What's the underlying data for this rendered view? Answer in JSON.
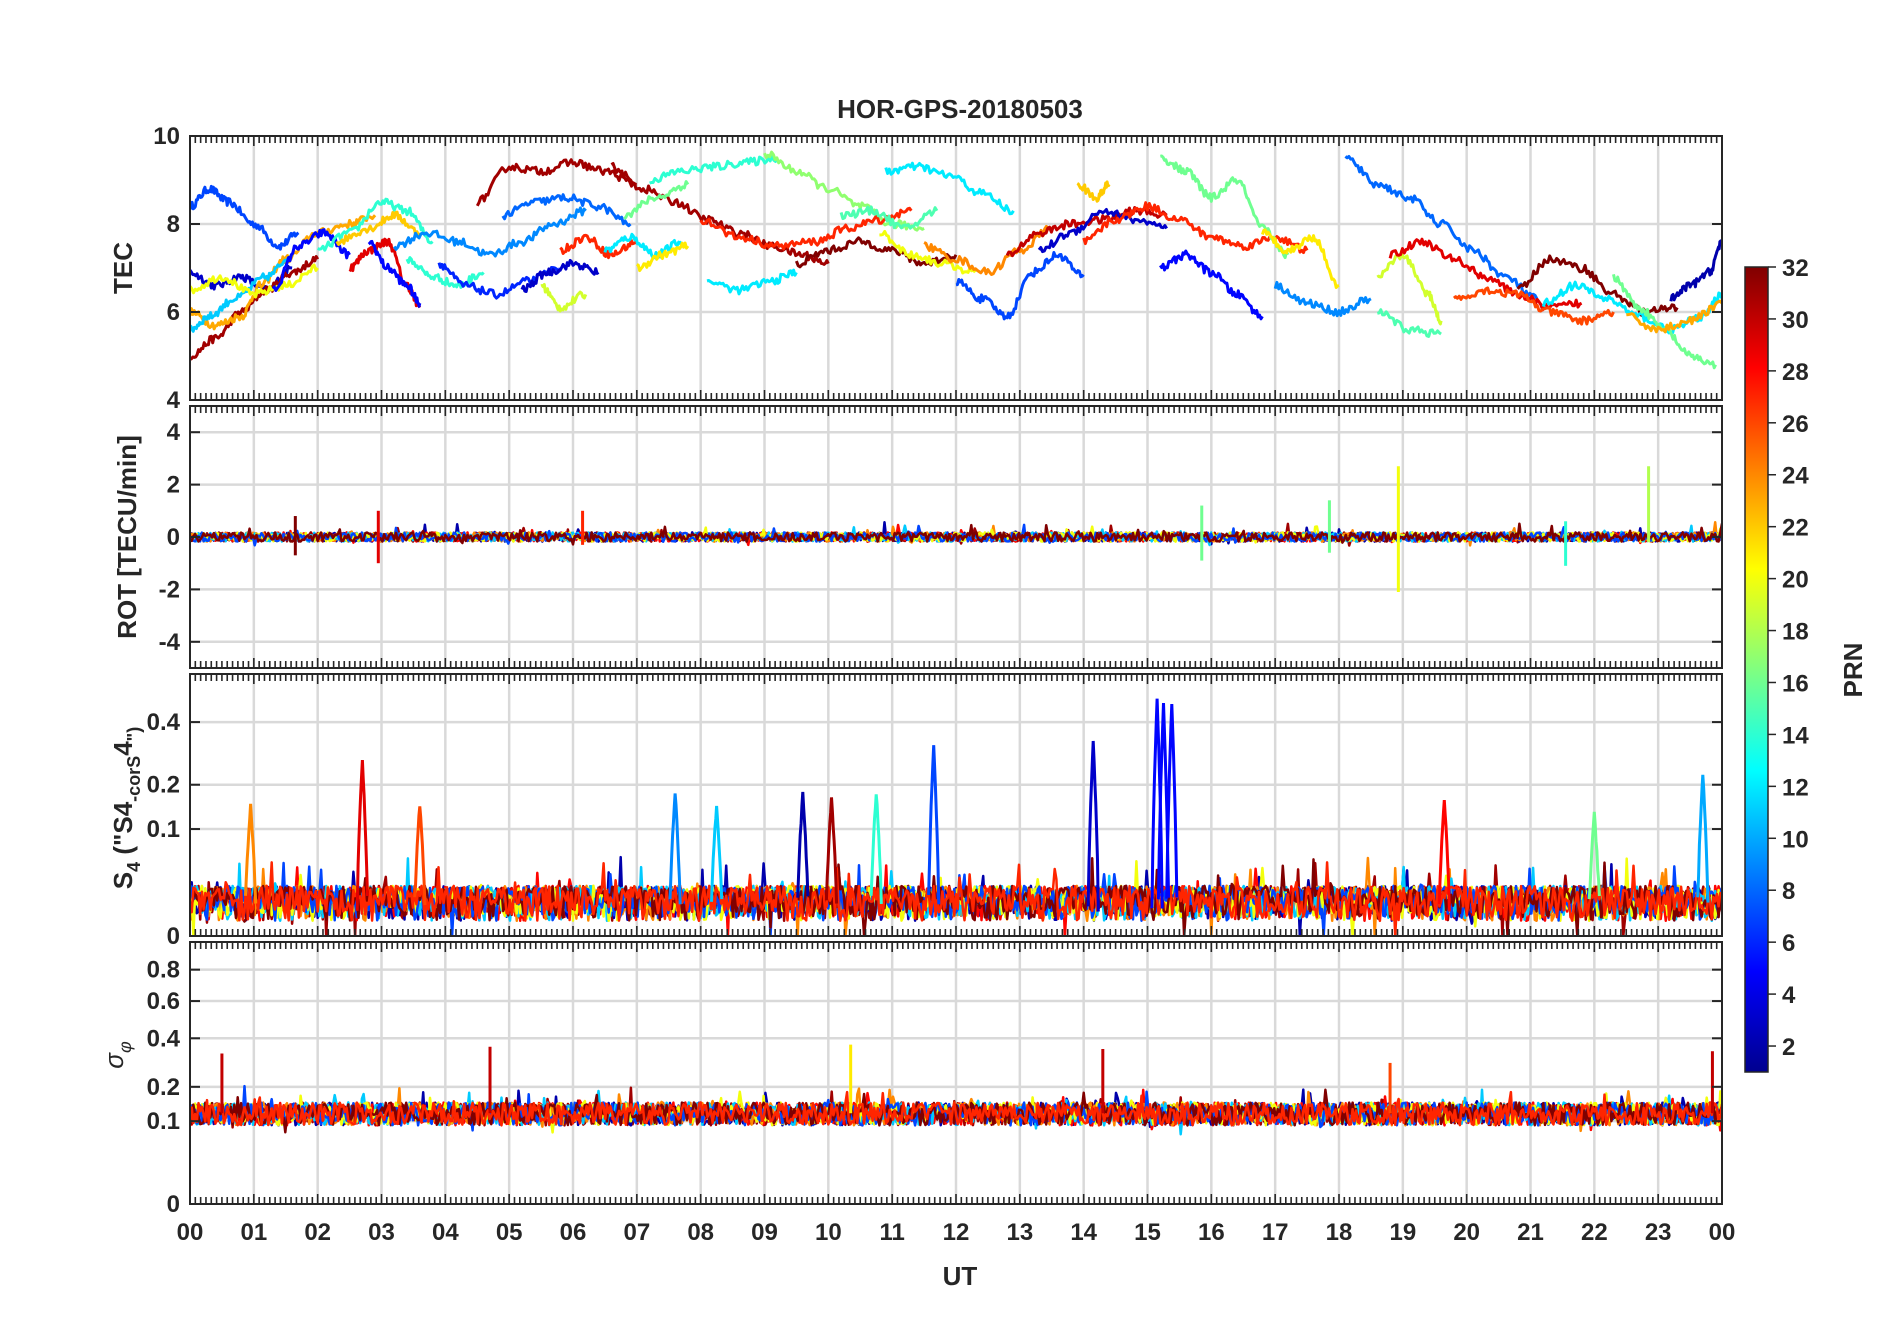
{
  "title": "HOR-GPS-20180503",
  "xlabel": "UT",
  "x_ticks": [
    "00",
    "01",
    "02",
    "03",
    "04",
    "05",
    "06",
    "07",
    "08",
    "09",
    "10",
    "11",
    "12",
    "13",
    "14",
    "15",
    "16",
    "17",
    "18",
    "19",
    "20",
    "21",
    "22",
    "23",
    "00"
  ],
  "colorbar": {
    "label": "PRN",
    "range": [
      1,
      32
    ],
    "ticks": [
      2,
      4,
      6,
      8,
      10,
      12,
      14,
      16,
      18,
      20,
      22,
      24,
      26,
      28,
      30,
      32
    ],
    "colormap": "jet",
    "stops": [
      "#00008f",
      "#0000ff",
      "#0080ff",
      "#00ffff",
      "#80ff80",
      "#ffff00",
      "#ff8000",
      "#ff0000",
      "#800000"
    ]
  },
  "panels": [
    {
      "id": "tec",
      "ylabel": "TEC",
      "ylim": [
        4,
        10
      ],
      "yticks": [
        4,
        6,
        8,
        10
      ],
      "scale": "linear"
    },
    {
      "id": "rot",
      "ylabel": "ROT [TECU/min]",
      "ylim": [
        -5,
        5
      ],
      "yticks": [
        -4,
        -2,
        0,
        2,
        4
      ],
      "scale": "linear"
    },
    {
      "id": "s4",
      "ylabel_parts": [
        "S",
        "4",
        " (\"S",
        "4",
        "-corS",
        "4",
        "\")"
      ],
      "ylim": [
        0,
        0.6
      ],
      "yticks": [
        0,
        0.1,
        0.2,
        0.4
      ],
      "scale": "sqrt"
    },
    {
      "id": "sigma",
      "ylabel_parts": [
        "σ",
        "φ"
      ],
      "ylim": [
        0,
        1
      ],
      "yticks": [
        0,
        0.1,
        0.2,
        0.4,
        0.6,
        0.8
      ],
      "scale": "sqrt"
    }
  ],
  "chart_data": [
    {
      "type": "line",
      "title": "HOR-GPS-20180503",
      "xlabel": "UT",
      "ylabel": "TEC",
      "xlim": [
        0,
        24
      ],
      "ylim": [
        4,
        10
      ],
      "series": [
        {
          "prn": 7,
          "x": [
            0,
            0.3,
            0.6,
            1.0,
            1.4,
            1.7
          ],
          "y": [
            8.4,
            8.8,
            8.5,
            8.0,
            7.5,
            7.8
          ]
        },
        {
          "prn": 3,
          "x": [
            0,
            0.4,
            0.8,
            1.2,
            1.6
          ],
          "y": [
            6.9,
            6.6,
            6.8,
            6.5,
            7.0
          ]
        },
        {
          "prn": 31,
          "x": [
            0,
            0.4,
            0.8,
            1.2,
            1.6,
            2.0
          ],
          "y": [
            5.0,
            5.4,
            6.0,
            6.5,
            6.9,
            7.2
          ]
        },
        {
          "prn": 23,
          "x": [
            0,
            0.4,
            0.8,
            1.1,
            1.5,
            2.0,
            2.5,
            2.9
          ],
          "y": [
            6.0,
            5.7,
            5.9,
            6.6,
            7.2,
            7.8,
            8.0,
            8.2
          ]
        },
        {
          "prn": 11,
          "x": [
            0,
            0.3,
            0.7,
            1.2,
            1.6
          ],
          "y": [
            5.6,
            5.9,
            6.3,
            6.8,
            7.3
          ]
        },
        {
          "prn": 20,
          "x": [
            0,
            0.5,
            1.0,
            1.5,
            2.0
          ],
          "y": [
            6.5,
            6.8,
            6.4,
            6.6,
            7.0
          ]
        },
        {
          "prn": 5,
          "x": [
            1.3,
            1.7,
            2.1,
            2.5
          ],
          "y": [
            6.5,
            7.5,
            7.8,
            7.3
          ]
        },
        {
          "prn": 14,
          "x": [
            2.0,
            2.5,
            3.0,
            3.4,
            3.8
          ],
          "y": [
            7.4,
            7.8,
            8.5,
            8.3,
            7.6
          ]
        },
        {
          "prn": 22,
          "x": [
            2.3,
            2.8,
            3.2,
            3.6
          ],
          "y": [
            7.6,
            7.9,
            8.2,
            7.8
          ]
        },
        {
          "prn": 29,
          "x": [
            2.5,
            2.8,
            3.1,
            3.4,
            3.6
          ],
          "y": [
            7.0,
            7.4,
            7.6,
            6.6,
            6.1
          ]
        },
        {
          "prn": 5,
          "x": [
            2.8,
            3.1,
            3.4,
            3.6
          ],
          "y": [
            7.6,
            7.0,
            6.6,
            6.2
          ]
        },
        {
          "prn": 9,
          "x": [
            3.2,
            3.7,
            4.2,
            4.7,
            5.2,
            5.7,
            6.2
          ],
          "y": [
            7.5,
            7.8,
            7.6,
            7.3,
            7.6,
            8.0,
            8.3
          ]
        },
        {
          "prn": 14,
          "x": [
            3.4,
            3.8,
            4.2,
            4.6
          ],
          "y": [
            7.2,
            6.8,
            6.6,
            6.9
          ]
        },
        {
          "prn": 6,
          "x": [
            3.9,
            4.3,
            4.8,
            5.3,
            5.8
          ],
          "y": [
            7.1,
            6.6,
            6.4,
            6.7,
            7.0
          ]
        },
        {
          "prn": 31,
          "x": [
            4.5,
            5.0,
            5.5,
            6.0,
            6.5,
            7.0
          ],
          "y": [
            8.5,
            9.3,
            9.2,
            9.4,
            9.2,
            8.9
          ]
        },
        {
          "prn": 8,
          "x": [
            4.9,
            5.4,
            5.9,
            6.4,
            6.9
          ],
          "y": [
            8.2,
            8.5,
            8.6,
            8.4,
            8.0
          ]
        },
        {
          "prn": 3,
          "x": [
            5.2,
            5.6,
            6.0,
            6.4
          ],
          "y": [
            6.5,
            6.9,
            7.1,
            6.9
          ]
        },
        {
          "prn": 19,
          "x": [
            5.5,
            5.8,
            6.2
          ],
          "y": [
            6.6,
            6.1,
            6.4
          ]
        },
        {
          "prn": 27,
          "x": [
            5.8,
            6.2,
            6.6,
            7.0
          ],
          "y": [
            7.4,
            7.7,
            7.3,
            7.6
          ]
        },
        {
          "prn": 12,
          "x": [
            6.5,
            6.9,
            7.3,
            7.7
          ],
          "y": [
            7.4,
            7.7,
            7.3,
            7.6
          ]
        },
        {
          "prn": 21,
          "x": [
            7.0,
            7.4,
            7.8
          ],
          "y": [
            7.0,
            7.3,
            7.5
          ]
        },
        {
          "prn": 31,
          "x": [
            6.6,
            7.1,
            7.6,
            8.1,
            8.6,
            9.1,
            9.6,
            10.0
          ],
          "y": [
            9.3,
            8.8,
            8.5,
            8.1,
            7.8,
            7.5,
            7.3,
            7.1
          ]
        },
        {
          "prn": 14,
          "x": [
            7.2,
            7.7,
            8.2,
            8.7,
            9.2
          ],
          "y": [
            9.0,
            9.2,
            9.3,
            9.4,
            9.5
          ]
        },
        {
          "prn": 16,
          "x": [
            6.8,
            7.3,
            7.8
          ],
          "y": [
            8.2,
            8.6,
            8.9
          ]
        },
        {
          "prn": 12,
          "x": [
            8.1,
            8.6,
            9.1,
            9.5
          ],
          "y": [
            6.7,
            6.5,
            6.7,
            6.9
          ]
        },
        {
          "prn": 17,
          "x": [
            9.0,
            9.5,
            10.0,
            10.5,
            11.0,
            11.5
          ],
          "y": [
            9.6,
            9.2,
            8.8,
            8.4,
            8.0,
            7.9
          ]
        },
        {
          "prn": 27,
          "x": [
            8.0,
            8.6,
            9.2,
            9.8,
            10.3,
            10.8,
            11.3
          ],
          "y": [
            8.1,
            7.7,
            7.5,
            7.6,
            7.9,
            8.1,
            8.3
          ]
        },
        {
          "prn": 32,
          "x": [
            9.5,
            10.0,
            10.5,
            11.0,
            11.5,
            12.0
          ],
          "y": [
            7.1,
            7.4,
            7.6,
            7.4,
            7.1,
            7.3
          ]
        },
        {
          "prn": 15,
          "x": [
            10.2,
            10.7,
            11.2,
            11.7
          ],
          "y": [
            8.2,
            8.3,
            7.9,
            8.3
          ]
        },
        {
          "prn": 20,
          "x": [
            10.8,
            11.3,
            11.8,
            12.3
          ],
          "y": [
            7.8,
            7.3,
            7.1,
            6.9
          ]
        },
        {
          "prn": 12,
          "x": [
            10.9,
            11.4,
            11.9,
            12.4,
            12.9
          ],
          "y": [
            9.2,
            9.3,
            9.1,
            8.7,
            8.3
          ]
        },
        {
          "prn": 24,
          "x": [
            11.5,
            12.0,
            12.5,
            13.0,
            13.5
          ],
          "y": [
            7.5,
            7.2,
            6.9,
            7.4,
            7.9
          ]
        },
        {
          "prn": 7,
          "x": [
            12.0,
            12.4,
            12.8,
            13.2,
            13.6,
            14.0
          ],
          "y": [
            6.7,
            6.3,
            5.9,
            6.9,
            7.3,
            6.8
          ]
        },
        {
          "prn": 30,
          "x": [
            12.8,
            13.3,
            13.8,
            14.3,
            14.8,
            15.3
          ],
          "y": [
            7.3,
            7.8,
            8.0,
            8.1,
            8.3,
            8.2
          ]
        },
        {
          "prn": 22,
          "x": [
            13.9,
            14.2,
            14.4
          ],
          "y": [
            8.9,
            8.6,
            8.9
          ]
        },
        {
          "prn": 3,
          "x": [
            13.3,
            13.8,
            14.3,
            14.8,
            15.3
          ],
          "y": [
            7.4,
            7.8,
            8.3,
            8.1,
            7.9
          ]
        },
        {
          "prn": 27,
          "x": [
            14.0,
            14.5,
            15.0,
            15.5,
            16.0,
            16.5,
            17.0,
            17.5
          ],
          "y": [
            7.6,
            8.1,
            8.4,
            8.1,
            7.7,
            7.5,
            7.7,
            7.4
          ]
        },
        {
          "prn": 5,
          "x": [
            15.2,
            15.6,
            16.0,
            16.4,
            16.8
          ],
          "y": [
            7.0,
            7.3,
            6.9,
            6.4,
            5.9
          ]
        },
        {
          "prn": 16,
          "x": [
            15.2,
            15.6,
            16.0,
            16.4,
            16.8,
            17.2
          ],
          "y": [
            9.5,
            9.2,
            8.6,
            9.0,
            7.9,
            7.3
          ]
        },
        {
          "prn": 21,
          "x": [
            16.8,
            17.2,
            17.6,
            18.0
          ],
          "y": [
            7.8,
            7.4,
            7.7,
            6.6
          ]
        },
        {
          "prn": 9,
          "x": [
            17.0,
            17.5,
            18.0,
            18.5
          ],
          "y": [
            6.6,
            6.2,
            6.0,
            6.3
          ]
        },
        {
          "prn": 8,
          "x": [
            18.1,
            18.6,
            19.1,
            19.6,
            20.1,
            20.6,
            21.1
          ],
          "y": [
            9.5,
            8.9,
            8.6,
            8.0,
            7.4,
            6.8,
            6.3
          ]
        },
        {
          "prn": 15,
          "x": [
            18.6,
            19.1,
            19.6
          ],
          "y": [
            6.0,
            5.6,
            5.5
          ]
        },
        {
          "prn": 19,
          "x": [
            18.6,
            19.0,
            19.4,
            19.6
          ],
          "y": [
            6.8,
            7.3,
            6.4,
            5.8
          ]
        },
        {
          "prn": 29,
          "x": [
            18.8,
            19.3,
            19.8,
            20.3,
            20.8,
            21.3,
            21.8
          ],
          "y": [
            7.3,
            7.6,
            7.2,
            6.8,
            6.4,
            6.1,
            6.2
          ]
        },
        {
          "prn": 26,
          "x": [
            19.8,
            20.3,
            20.8,
            21.3,
            21.8,
            22.3
          ],
          "y": [
            6.3,
            6.5,
            6.4,
            6.0,
            5.8,
            6.0
          ]
        },
        {
          "prn": 32,
          "x": [
            20.8,
            21.3,
            21.8,
            22.3,
            22.8,
            23.3
          ],
          "y": [
            6.5,
            7.2,
            7.0,
            6.4,
            6.0,
            6.1
          ]
        },
        {
          "prn": 12,
          "x": [
            21.2,
            21.7,
            22.2,
            22.7,
            23.2,
            23.7,
            24.0
          ],
          "y": [
            6.2,
            6.6,
            6.3,
            5.9,
            5.6,
            5.9,
            6.4
          ]
        },
        {
          "prn": 16,
          "x": [
            22.3,
            22.7,
            23.1,
            23.5,
            23.9
          ],
          "y": [
            6.8,
            6.1,
            5.6,
            5.0,
            4.8
          ]
        },
        {
          "prn": 2,
          "x": [
            23.2,
            23.5,
            23.8,
            24.0
          ],
          "y": [
            6.3,
            6.6,
            6.9,
            7.6
          ]
        },
        {
          "prn": 23,
          "x": [
            22.5,
            23.0,
            23.5,
            24.0
          ],
          "y": [
            5.9,
            5.6,
            5.8,
            6.2
          ]
        }
      ]
    },
    {
      "type": "line",
      "ylabel": "ROT [TECU/min]",
      "ylim": [
        -5,
        5
      ],
      "note_spikes": [
        {
          "prn": 20,
          "x": 18.93,
          "ymin": -2.1,
          "ymax": 2.7
        },
        {
          "prn": 18,
          "x": 22.85,
          "ymin": -0.2,
          "ymax": 2.7
        },
        {
          "prn": 27,
          "x": 6.15,
          "ymin": -0.3,
          "ymax": 1.0
        },
        {
          "prn": 29,
          "x": 2.95,
          "ymin": -1.0,
          "ymax": 1.0
        },
        {
          "prn": 32,
          "x": 1.65,
          "ymin": -0.7,
          "ymax": 0.8
        },
        {
          "prn": 16,
          "x": 15.85,
          "ymin": -0.9,
          "ymax": 1.2
        },
        {
          "prn": 16,
          "x": 17.85,
          "ymin": -0.6,
          "ymax": 1.4
        },
        {
          "prn": 14,
          "x": 21.55,
          "ymin": -1.1,
          "ymax": 0.6
        }
      ]
    },
    {
      "type": "line",
      "ylabel": "S4 (\"S4-corS4\")",
      "ylim": [
        0,
        0.6
      ],
      "spikes": [
        {
          "prn": 5,
          "x": 15.15,
          "value": 0.49
        },
        {
          "prn": 5,
          "x": 15.25,
          "value": 0.47
        },
        {
          "prn": 5,
          "x": 15.38,
          "value": 0.47
        },
        {
          "prn": 3,
          "x": 14.15,
          "value": 0.33
        },
        {
          "prn": 7,
          "x": 11.65,
          "value": 0.32
        },
        {
          "prn": 29,
          "x": 2.7,
          "value": 0.27
        },
        {
          "prn": 10,
          "x": 23.7,
          "value": 0.23
        },
        {
          "prn": 2,
          "x": 9.6,
          "value": 0.18
        },
        {
          "prn": 9,
          "x": 7.6,
          "value": 0.18
        },
        {
          "prn": 31,
          "x": 10.05,
          "value": 0.17
        },
        {
          "prn": 14,
          "x": 10.75,
          "value": 0.18
        },
        {
          "prn": 24,
          "x": 0.95,
          "value": 0.15
        },
        {
          "prn": 26,
          "x": 3.6,
          "value": 0.15
        },
        {
          "prn": 11,
          "x": 8.25,
          "value": 0.15
        },
        {
          "prn": 28,
          "x": 19.65,
          "value": 0.16
        },
        {
          "prn": 16,
          "x": 22.0,
          "value": 0.13
        }
      ]
    },
    {
      "type": "line",
      "ylabel": "σφ",
      "ylim": [
        0,
        1
      ],
      "spikes": [
        {
          "prn": 30,
          "x": 0.5,
          "value": 0.33
        },
        {
          "prn": 30,
          "x": 4.7,
          "value": 0.36
        },
        {
          "prn": 21,
          "x": 10.35,
          "value": 0.37
        },
        {
          "prn": 30,
          "x": 14.3,
          "value": 0.35
        },
        {
          "prn": 26,
          "x": 18.8,
          "value": 0.29
        },
        {
          "prn": 30,
          "x": 23.85,
          "value": 0.34
        }
      ]
    }
  ]
}
